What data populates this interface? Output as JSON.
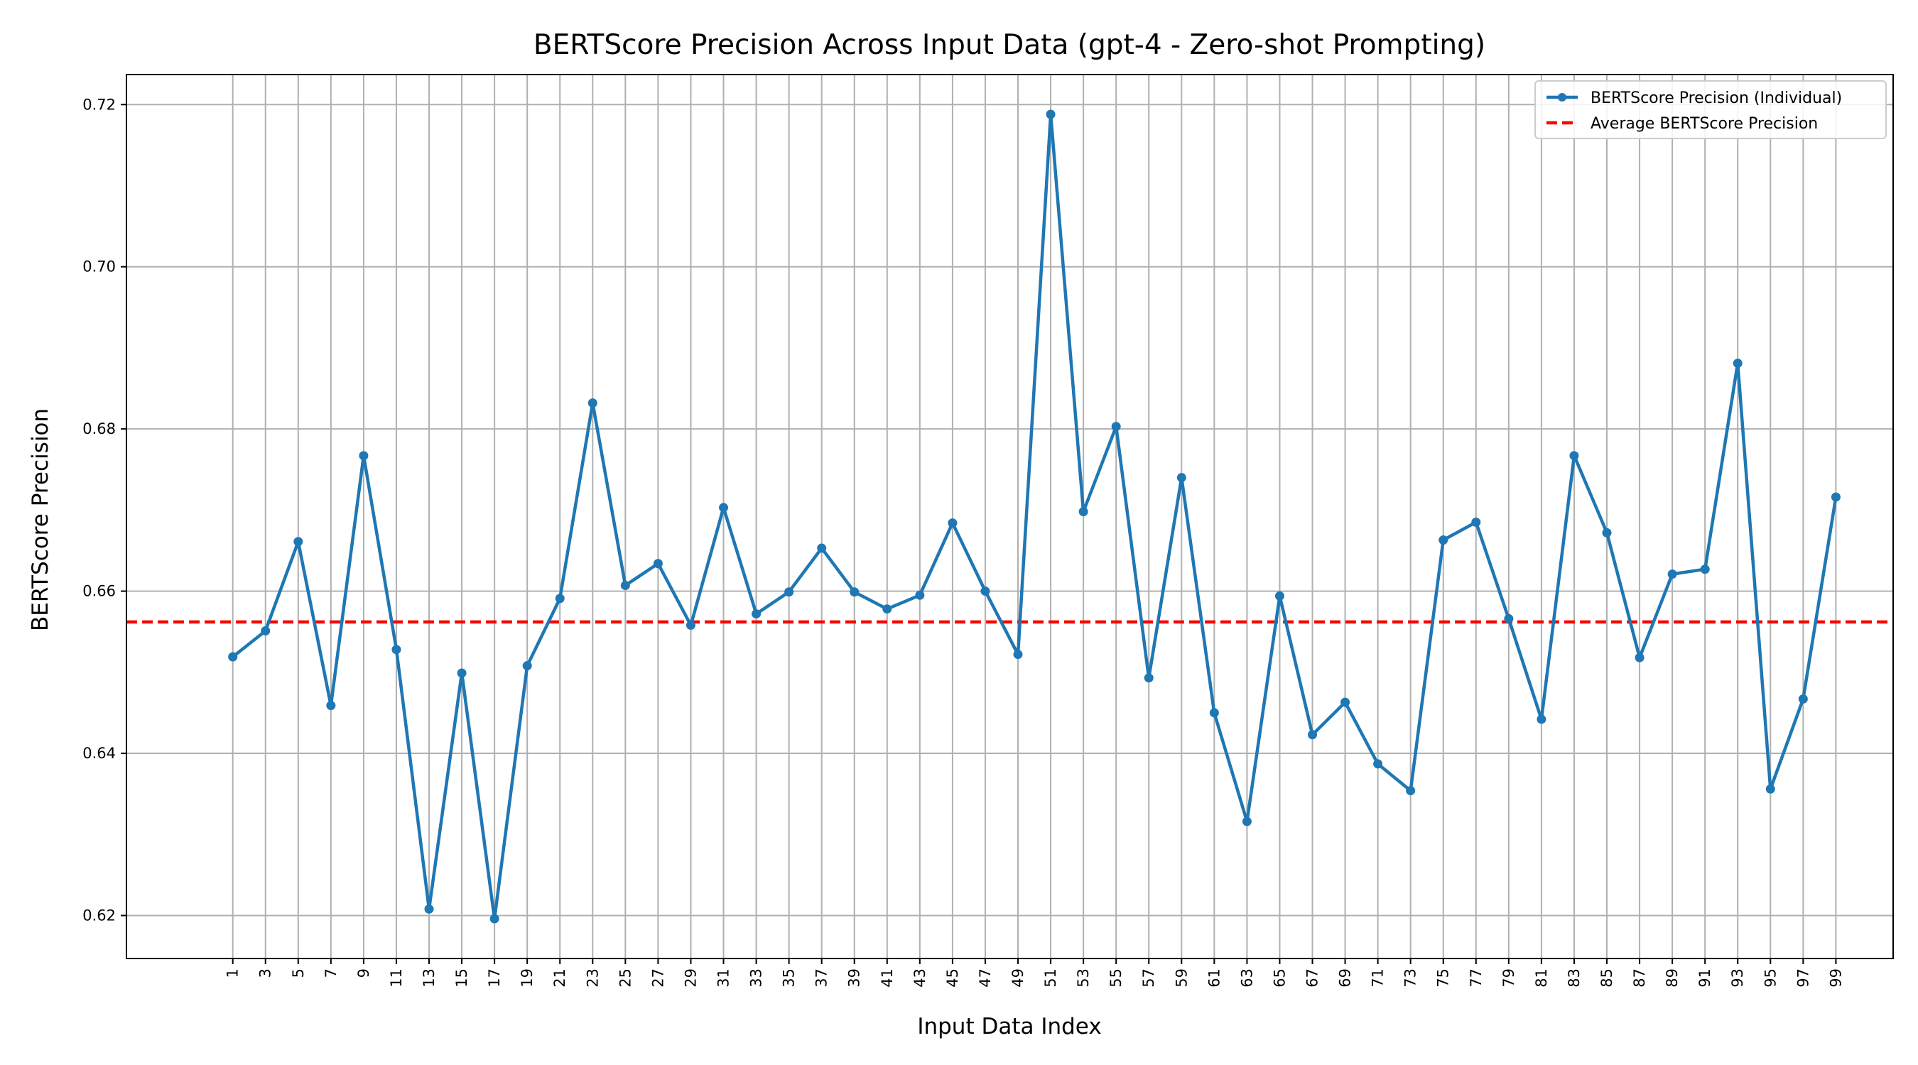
{
  "chart_data": {
    "type": "line",
    "title": "BERTScore Precision Across Input Data (gpt-4 - Zero-shot Prompting)",
    "xlabel": "Input Data Index",
    "ylabel": "BERTScore Precision",
    "x_ticks": [
      1,
      3,
      5,
      7,
      9,
      11,
      13,
      15,
      17,
      19,
      21,
      23,
      25,
      27,
      29,
      31,
      33,
      35,
      37,
      39,
      41,
      43,
      45,
      47,
      49,
      51,
      53,
      55,
      57,
      59,
      61,
      63,
      65,
      67,
      69,
      71,
      73,
      75,
      77,
      79,
      81,
      83,
      85,
      87,
      89,
      91,
      93,
      95,
      97,
      99
    ],
    "x_tick_labels": [
      "1",
      "3",
      "5",
      "7",
      "9",
      "11",
      "13",
      "15",
      "17",
      "19",
      "21",
      "23",
      "25",
      "27",
      "29",
      "31",
      "33",
      "35",
      "37",
      "39",
      "41",
      "43",
      "45",
      "47",
      "49",
      "51",
      "53",
      "55",
      "57",
      "59",
      "61",
      "63",
      "65",
      "67",
      "69",
      "71",
      "73",
      "75",
      "77",
      "79",
      "81",
      "83",
      "85",
      "87",
      "89",
      "91",
      "93",
      "95",
      "97",
      "99"
    ],
    "xlim": [
      -5.5,
      102.5
    ],
    "ylim": [
      0.6147,
      0.7237
    ],
    "y_ticks": [
      0.62,
      0.64,
      0.66,
      0.68,
      0.7,
      0.72
    ],
    "y_tick_labels": [
      "0.62",
      "0.64",
      "0.66",
      "0.68",
      "0.70",
      "0.72"
    ],
    "grid": true,
    "legend_position": "top-right",
    "series": [
      {
        "name": "BERTScore Precision (Individual)",
        "color": "#1f77b4",
        "style": "solid-marker",
        "x": [
          1,
          3,
          5,
          7,
          9,
          11,
          13,
          15,
          17,
          19,
          21,
          23,
          25,
          27,
          29,
          31,
          33,
          35,
          37,
          39,
          41,
          43,
          45,
          47,
          49,
          51,
          53,
          55,
          57,
          59,
          61,
          63,
          65,
          67,
          69,
          71,
          73,
          75,
          77,
          79,
          81,
          83,
          85,
          87,
          89,
          91,
          93,
          95,
          97,
          99
        ],
        "values": [
          0.6519,
          0.6551,
          0.6661,
          0.6459,
          0.6767,
          0.6528,
          0.6208,
          0.6499,
          0.6196,
          0.6508,
          0.6591,
          0.6832,
          0.6607,
          0.6634,
          0.6558,
          0.6703,
          0.6572,
          0.6599,
          0.6653,
          0.6599,
          0.6578,
          0.6595,
          0.6684,
          0.66,
          0.6522,
          0.7188,
          0.6698,
          0.6803,
          0.6493,
          0.674,
          0.645,
          0.6316,
          0.6594,
          0.6423,
          0.6463,
          0.6387,
          0.6354,
          0.6663,
          0.6685,
          0.6566,
          0.6442,
          0.6767,
          0.6672,
          0.6518,
          0.6621,
          0.6627,
          0.6881,
          0.6356,
          0.6467,
          0.6716
        ]
      },
      {
        "name": "Average BERTScore Precision",
        "color": "#ff0000",
        "style": "dashed",
        "value": 0.6562
      }
    ]
  }
}
